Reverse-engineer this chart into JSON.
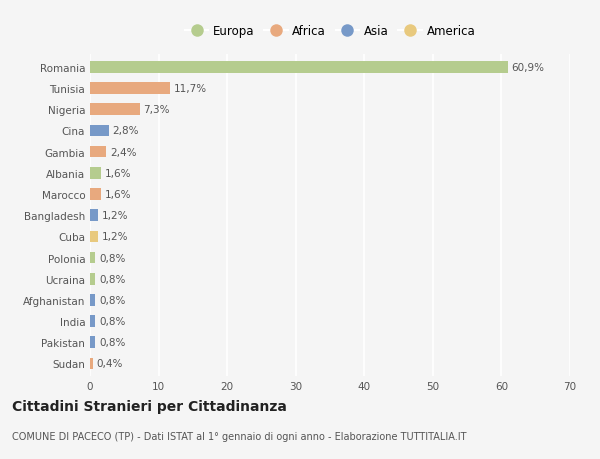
{
  "categories": [
    "Romania",
    "Tunisia",
    "Nigeria",
    "Cina",
    "Gambia",
    "Albania",
    "Marocco",
    "Bangladesh",
    "Cuba",
    "Polonia",
    "Ucraina",
    "Afghanistan",
    "India",
    "Pakistan",
    "Sudan"
  ],
  "values": [
    60.9,
    11.7,
    7.3,
    2.8,
    2.4,
    1.6,
    1.6,
    1.2,
    1.2,
    0.8,
    0.8,
    0.8,
    0.8,
    0.8,
    0.4
  ],
  "labels": [
    "60,9%",
    "11,7%",
    "7,3%",
    "2,8%",
    "2,4%",
    "1,6%",
    "1,6%",
    "1,2%",
    "1,2%",
    "0,8%",
    "0,8%",
    "0,8%",
    "0,8%",
    "0,8%",
    "0,4%"
  ],
  "continents": [
    "Europa",
    "Africa",
    "Africa",
    "Asia",
    "Africa",
    "Europa",
    "Africa",
    "Asia",
    "America",
    "Europa",
    "Europa",
    "Asia",
    "Asia",
    "Asia",
    "Africa"
  ],
  "continent_colors": {
    "Europa": "#b5cc8e",
    "Africa": "#e8a97e",
    "Asia": "#7799c8",
    "America": "#e8c97e"
  },
  "legend_order": [
    "Europa",
    "Africa",
    "Asia",
    "America"
  ],
  "xlim": [
    0,
    70
  ],
  "xticks": [
    0,
    10,
    20,
    30,
    40,
    50,
    60,
    70
  ],
  "title": "Cittadini Stranieri per Cittadinanza",
  "subtitle": "COMUNE DI PACECO (TP) - Dati ISTAT al 1° gennaio di ogni anno - Elaborazione TUTTITALIA.IT",
  "background_color": "#f5f5f5",
  "bar_height": 0.55,
  "grid_color": "#ffffff",
  "label_fontsize": 7.5,
  "tick_fontsize": 7.5,
  "title_fontsize": 10,
  "subtitle_fontsize": 7
}
